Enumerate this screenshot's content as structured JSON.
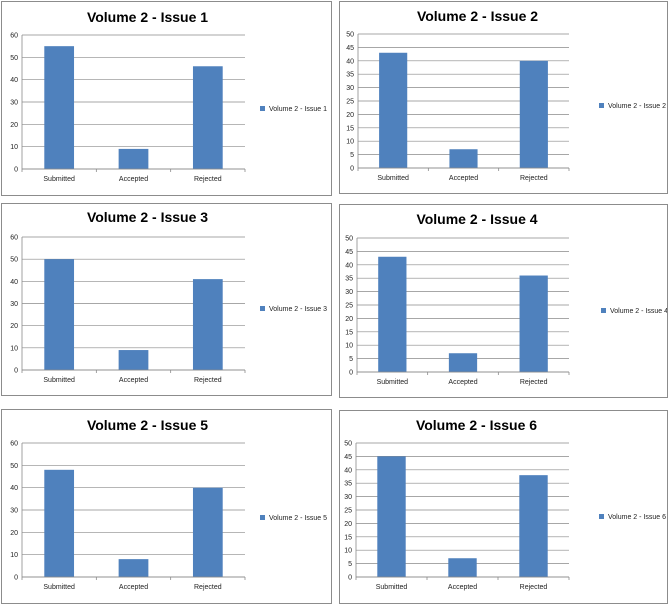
{
  "colors": {
    "bar": "#4f81bd",
    "grid": "#8a8a8a",
    "border": "#8c8c8c"
  },
  "chart_data": [
    {
      "type": "bar",
      "title": "Volume 2 - Issue 1",
      "categories": [
        "Submitted",
        "Accepted",
        "Rejected"
      ],
      "series": [
        {
          "name": "Volume 2 - Issue 1",
          "values": [
            55,
            9,
            46
          ]
        }
      ],
      "ylim": [
        0,
        60
      ],
      "yticks": [
        0,
        10,
        20,
        30,
        40,
        50,
        60
      ],
      "grid": true,
      "legend": "right"
    },
    {
      "type": "bar",
      "title": "Volume 2 - Issue 2",
      "categories": [
        "Submitted",
        "Accepted",
        "Rejected"
      ],
      "series": [
        {
          "name": "Volume 2 - Issue 2",
          "values": [
            43,
            7,
            40
          ]
        }
      ],
      "ylim": [
        0,
        50
      ],
      "yticks": [
        0,
        5,
        10,
        15,
        20,
        25,
        30,
        35,
        40,
        45,
        50
      ],
      "grid": true,
      "legend": "right"
    },
    {
      "type": "bar",
      "title": "Volume 2 - Issue 3",
      "categories": [
        "Submitted",
        "Accepted",
        "Rejected"
      ],
      "series": [
        {
          "name": "Volume 2 - Issue 3",
          "values": [
            50,
            9,
            41
          ]
        }
      ],
      "ylim": [
        0,
        60
      ],
      "yticks": [
        0,
        10,
        20,
        30,
        40,
        50,
        60
      ],
      "grid": true,
      "legend": "right"
    },
    {
      "type": "bar",
      "title": "Volume 2 - Issue 4",
      "categories": [
        "Submitted",
        "Accepted",
        "Rejected"
      ],
      "series": [
        {
          "name": "Volume 2 - Issue 4",
          "values": [
            43,
            7,
            36
          ]
        }
      ],
      "ylim": [
        0,
        50
      ],
      "yticks": [
        0,
        5,
        10,
        15,
        20,
        25,
        30,
        35,
        40,
        45,
        50
      ],
      "grid": true,
      "legend": "right"
    },
    {
      "type": "bar",
      "title": "Volume 2 - Issue 5",
      "categories": [
        "Submitted",
        "Accepted",
        "Rejected"
      ],
      "series": [
        {
          "name": "Volume 2 - Issue 5",
          "values": [
            48,
            8,
            40
          ]
        }
      ],
      "ylim": [
        0,
        60
      ],
      "yticks": [
        0,
        10,
        20,
        30,
        40,
        50,
        60
      ],
      "grid": true,
      "legend": "right"
    },
    {
      "type": "bar",
      "title": "Volume 2 - Issue 6",
      "categories": [
        "Submitted",
        "Accepted",
        "Rejected"
      ],
      "series": [
        {
          "name": "Volume 2 - Issue 6",
          "values": [
            45,
            7,
            38
          ]
        }
      ],
      "ylim": [
        0,
        50
      ],
      "yticks": [
        0,
        5,
        10,
        15,
        20,
        25,
        30,
        35,
        40,
        45,
        50
      ],
      "grid": true,
      "legend": "right"
    }
  ]
}
